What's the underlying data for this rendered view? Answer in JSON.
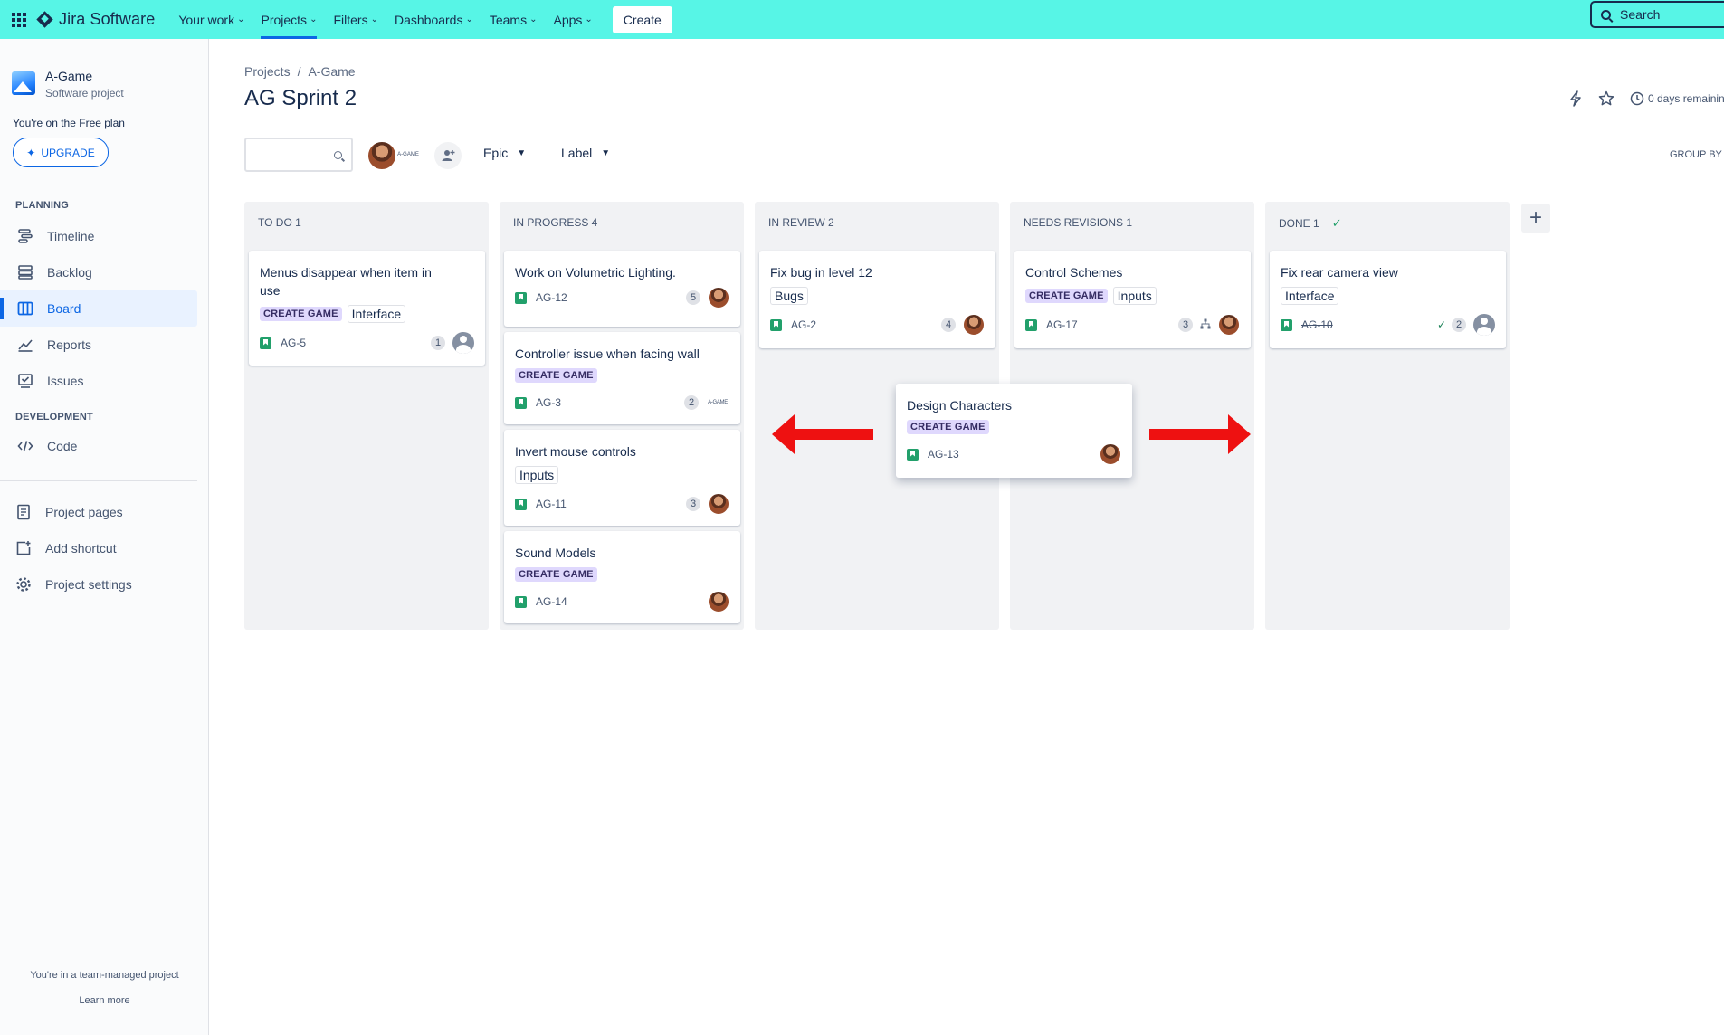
{
  "topnav": {
    "product": "Jira Software",
    "items": [
      {
        "label": "Your work",
        "active": false
      },
      {
        "label": "Projects",
        "active": true
      },
      {
        "label": "Filters",
        "active": false
      },
      {
        "label": "Dashboards",
        "active": false
      },
      {
        "label": "Teams",
        "active": false
      },
      {
        "label": "Apps",
        "active": false
      }
    ],
    "create_label": "Create",
    "search_placeholder": "Search"
  },
  "sidebar": {
    "project_name": "A-Game",
    "project_type": "Software project",
    "plan_text": "You're on the Free plan",
    "upgrade_label": "UPGRADE",
    "planning_heading": "PLANNING",
    "planning_items": [
      {
        "label": "Timeline",
        "icon": "timeline-icon"
      },
      {
        "label": "Backlog",
        "icon": "backlog-icon"
      },
      {
        "label": "Board",
        "icon": "board-icon",
        "active": true
      },
      {
        "label": "Reports",
        "icon": "reports-icon"
      },
      {
        "label": "Issues",
        "icon": "issues-icon"
      }
    ],
    "development_heading": "DEVELOPMENT",
    "development_items": [
      {
        "label": "Code",
        "icon": "code-icon"
      }
    ],
    "other_items": [
      {
        "label": "Project pages",
        "icon": "pages-icon"
      },
      {
        "label": "Add shortcut",
        "icon": "add-shortcut-icon"
      },
      {
        "label": "Project settings",
        "icon": "gear-icon"
      }
    ],
    "footer_text": "You're in a team-managed project",
    "footer_link": "Learn more"
  },
  "header": {
    "breadcrumb": [
      "Projects",
      "A-Game"
    ],
    "title": "AG Sprint 2",
    "days_remaining": "0 days remainin"
  },
  "toolbar": {
    "epic_filter": "Epic",
    "label_filter": "Label",
    "group_by": "GROUP BY",
    "logo_text": "A-GAME"
  },
  "board": {
    "columns": [
      {
        "title": "TO DO 1",
        "done": false
      },
      {
        "title": "IN PROGRESS 4",
        "done": false
      },
      {
        "title": "IN REVIEW 2",
        "done": false
      },
      {
        "title": "NEEDS REVISIONS 1",
        "done": false
      },
      {
        "title": "DONE 1",
        "done": true
      }
    ],
    "cards": [
      {
        "title": "Menus disappear when item in use",
        "epic": "CREATE GAME",
        "label": "Interface",
        "key": "AG-5",
        "count": "1",
        "assignee": "unassigned"
      },
      {
        "title": "Work on Volumetric Lighting.",
        "key": "AG-12",
        "count": "5",
        "assignee": "user"
      },
      {
        "title": "Controller issue when facing wall",
        "epic": "CREATE GAME",
        "key": "AG-3",
        "count": "2",
        "assignee": "logo"
      },
      {
        "title": "Invert mouse controls",
        "label": "Inputs",
        "key": "AG-11",
        "count": "3",
        "assignee": "user"
      },
      {
        "title": "Sound Models",
        "epic": "CREATE GAME",
        "key": "AG-14",
        "assignee": "user"
      },
      {
        "title": "Fix bug in level 12",
        "label": "Bugs",
        "key": "AG-2",
        "count": "4",
        "assignee": "user"
      },
      {
        "title": "Control Schemes",
        "epic": "CREATE GAME",
        "label": "Inputs",
        "key": "AG-17",
        "count": "3",
        "assignee": "user"
      },
      {
        "title": "Fix rear camera view",
        "label": "Interface",
        "key": "AG-10",
        "count": "2",
        "assignee": "unassigned",
        "done": true
      },
      {
        "title": "Design Characters",
        "epic": "CREATE GAME",
        "key": "AG-13",
        "assignee": "user",
        "dragging": true
      }
    ],
    "arrow_color": "#ee1111"
  }
}
